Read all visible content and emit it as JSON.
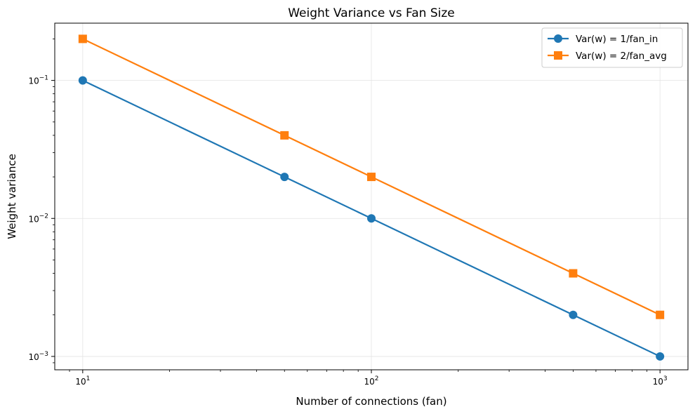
{
  "chart_data": {
    "type": "line",
    "title": "Weight Variance vs Fan Size",
    "xlabel": "Number of connections (fan)",
    "ylabel": "Weight variance",
    "xscale": "log",
    "yscale": "log",
    "xlim": [
      8,
      1250
    ],
    "ylim": [
      0.0008,
      0.26
    ],
    "grid": true,
    "legend_position": "top-right",
    "x_ticks": [
      {
        "value": 10,
        "base": "10",
        "exp": "1"
      },
      {
        "value": 100,
        "base": "10",
        "exp": "2"
      },
      {
        "value": 1000,
        "base": "10",
        "exp": "3"
      }
    ],
    "y_ticks": [
      {
        "value": 0.001,
        "base": "10",
        "exp": "−3"
      },
      {
        "value": 0.01,
        "base": "10",
        "exp": "−2"
      },
      {
        "value": 0.1,
        "base": "10",
        "exp": "−1"
      }
    ],
    "series": [
      {
        "name": "Var(w) = 1/fan_in",
        "color": "#1f77b4",
        "marker": "circle",
        "x": [
          10,
          50,
          100,
          500,
          1000
        ],
        "y": [
          0.1,
          0.02,
          0.01,
          0.002,
          0.001
        ]
      },
      {
        "name": "Var(w) = 2/fan_avg",
        "color": "#ff7f0e",
        "marker": "square",
        "x": [
          10,
          50,
          100,
          500,
          1000
        ],
        "y": [
          0.2,
          0.04,
          0.02,
          0.004,
          0.002
        ]
      }
    ]
  }
}
